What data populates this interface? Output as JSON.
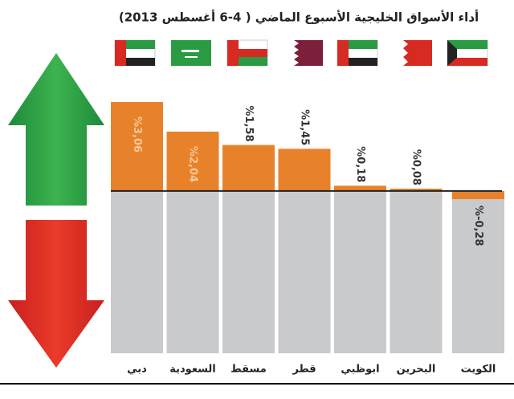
{
  "chart_data": {
    "type": "bar",
    "title": "أداء الأسواق الخليجية الأسبوع الماضي ( 4-6 أغسطس 2013)",
    "categories": [
      "دبي",
      "السعودية",
      "مسقط",
      "قطر",
      "ابوظبي",
      "البحرين",
      "الكويت"
    ],
    "values": [
      3.06,
      2.04,
      1.58,
      1.45,
      0.18,
      0.08,
      -0.28
    ],
    "value_labels": [
      "%3,06",
      "%2,04",
      "%1,58",
      "%1,45",
      "%0,18",
      "%0,08",
      "%-0,28"
    ],
    "color": "#e8822a",
    "ylim": [
      -0.5,
      3.06
    ]
  }
}
